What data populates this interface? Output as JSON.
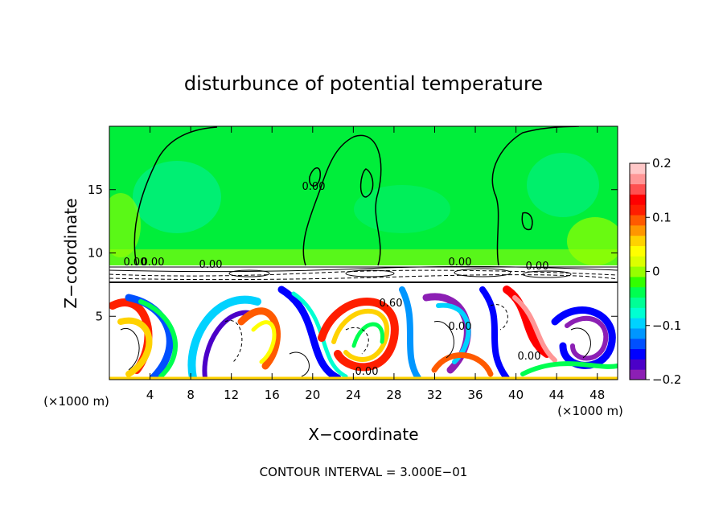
{
  "chart_data": {
    "type": "heatmap",
    "title": "disturbunce of potential temperature",
    "xlabel": "X−coordinate",
    "ylabel": "Z−coordinate",
    "x_unit": "(×1000 m)",
    "z_unit": "(×1000 m)",
    "xlim": [
      0,
      50
    ],
    "ylim": [
      0,
      20
    ],
    "x_ticks": [
      4,
      8,
      12,
      16,
      20,
      24,
      28,
      32,
      36,
      40,
      44,
      48
    ],
    "y_ticks": [
      5,
      10,
      15
    ],
    "colorbar": {
      "range": [
        -0.2,
        0.2
      ],
      "ticks": [
        0.2,
        0.1,
        0,
        -0.1,
        -0.2
      ],
      "tick_labels": [
        "0.2",
        "0.1",
        "0",
        "−0.1",
        "−0.2"
      ],
      "colors": [
        "#8c1fb4",
        "#4b00c8",
        "#0000ff",
        "#0050ff",
        "#0096ff",
        "#00d2ff",
        "#00ffd2",
        "#00ff96",
        "#00ff50",
        "#32ff00",
        "#96ff00",
        "#dcff00",
        "#ffff00",
        "#ffd200",
        "#ff9600",
        "#ff5a00",
        "#ff1e00",
        "#ff0000",
        "#ff5050",
        "#ff9696",
        "#ffc8c8"
      ]
    },
    "contour_labels": [
      "0.00",
      "0.00",
      "0.00",
      "0.00",
      "0.00",
      "0.00",
      "0.60",
      "0.00",
      "0.00",
      "0.00"
    ],
    "footnote": "CONTOUR INTERVAL = 3.000E−01"
  }
}
